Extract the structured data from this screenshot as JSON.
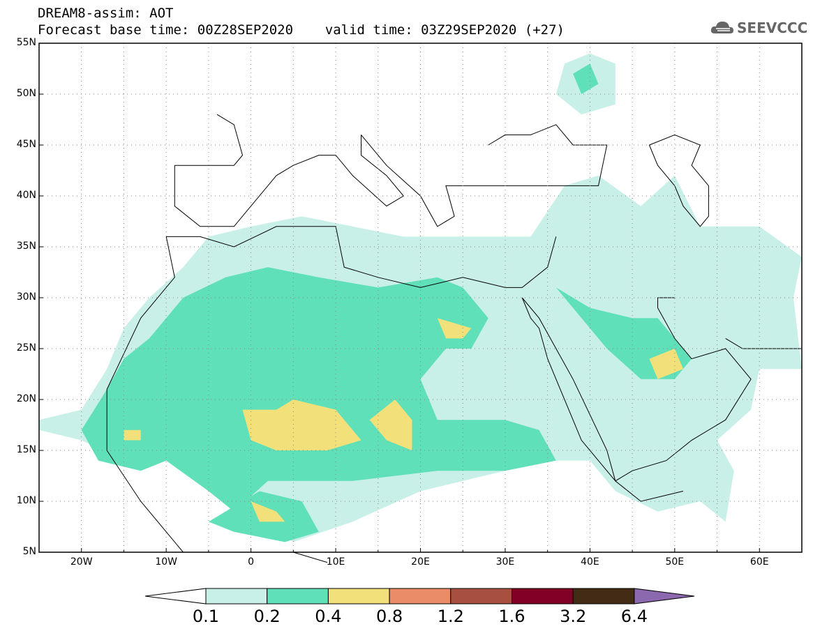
{
  "title": {
    "line1": "DREAM8-assim: AOT",
    "line2": "Forecast base time: 00Z28SEP2020    valid time: 03Z29SEP2020 (+27)"
  },
  "logo": {
    "text": "SEEVCCC",
    "icon": "cloud-icon"
  },
  "map": {
    "lon_range": [
      -25,
      65
    ],
    "lat_range": [
      5,
      55
    ],
    "grid": "dotted",
    "lat_labels": [
      "55N",
      "50N",
      "45N",
      "40N",
      "35N",
      "30N",
      "25N",
      "20N",
      "15N",
      "10N",
      "5N"
    ],
    "lon_labels": [
      "20W",
      "10W",
      "0",
      "10E",
      "20E",
      "30E",
      "40E",
      "50E",
      "60E"
    ]
  },
  "colorbar": {
    "levels": [
      "0.1",
      "0.2",
      "0.4",
      "0.8",
      "1.2",
      "1.6",
      "3.2",
      "6.4"
    ],
    "colors": [
      "#c9f0e8",
      "#5fe0b8",
      "#f2e07a",
      "#eb8c68",
      "#a8503f",
      "#820025",
      "#432c16",
      "#8c68ae"
    ],
    "under_color": "#ffffff"
  },
  "chart_data": {
    "type": "heatmap",
    "title": "DREAM8-assim: AOT",
    "xlabel": "",
    "ylabel": "",
    "xlim": [
      -25,
      65
    ],
    "ylim": [
      5,
      55
    ],
    "series": [
      {
        "name": "",
        "regions": [
          {
            "level": "0.1",
            "polygon": [
              [
                -25,
                17
              ],
              [
                -20,
                16
              ],
              [
                -15,
                14
              ],
              [
                -10,
                15
              ],
              [
                -5,
                11
              ],
              [
                0,
                9
              ],
              [
                5,
                6
              ],
              [
                12,
                8
              ],
              [
                20,
                11
              ],
              [
                25,
                12
              ],
              [
                30,
                13
              ],
              [
                35,
                14
              ],
              [
                40,
                14
              ],
              [
                43,
                11
              ],
              [
                48,
                9
              ],
              [
                53,
                10
              ],
              [
                56,
                8
              ],
              [
                57,
                13
              ],
              [
                55,
                16
              ],
              [
                59,
                19
              ],
              [
                60,
                23
              ],
              [
                65,
                23
              ],
              [
                64,
                30
              ],
              [
                65,
                34
              ],
              [
                60,
                37
              ],
              [
                53,
                37
              ],
              [
                50,
                42
              ],
              [
                46,
                39
              ],
              [
                41,
                42
              ],
              [
                37,
                41
              ],
              [
                33,
                36
              ],
              [
                28,
                36
              ],
              [
                23,
                36
              ],
              [
                18,
                36
              ],
              [
                12,
                37
              ],
              [
                6,
                38
              ],
              [
                0,
                37
              ],
              [
                -5,
                36
              ],
              [
                -8,
                33
              ],
              [
                -12,
                30
              ],
              [
                -15,
                27
              ],
              [
                -17,
                23
              ],
              [
                -20,
                19
              ],
              [
                -25,
                18
              ]
            ]
          },
          {
            "level": "0.1",
            "polygon": [
              [
                37,
                53
              ],
              [
                40,
                54
              ],
              [
                43,
                53
              ],
              [
                43,
                49
              ],
              [
                39,
                48
              ],
              [
                36,
                50
              ]
            ]
          },
          {
            "level": "0.2",
            "polygon": [
              [
                -15,
                24
              ],
              [
                -12,
                26
              ],
              [
                -8,
                30
              ],
              [
                -3,
                32
              ],
              [
                2,
                33
              ],
              [
                8,
                32
              ],
              [
                15,
                31
              ],
              [
                22,
                32
              ],
              [
                25,
                31
              ],
              [
                28,
                28
              ],
              [
                26,
                25
              ],
              [
                23,
                25
              ],
              [
                20,
                22
              ],
              [
                22,
                18
              ],
              [
                30,
                18
              ],
              [
                34,
                17
              ],
              [
                36,
                14
              ],
              [
                30,
                13
              ],
              [
                22,
                13
              ],
              [
                12,
                12
              ],
              [
                2,
                12
              ],
              [
                -2,
                9
              ],
              [
                -5,
                11
              ],
              [
                -10,
                14
              ],
              [
                -13,
                13
              ],
              [
                -18,
                14
              ],
              [
                -20,
                17
              ],
              [
                -17,
                21
              ]
            ]
          },
          {
            "level": "0.2",
            "polygon": [
              [
                36,
                31
              ],
              [
                40,
                29
              ],
              [
                45,
                28
              ],
              [
                48,
                28
              ],
              [
                52,
                24
              ],
              [
                50,
                22
              ],
              [
                46,
                22
              ],
              [
                42,
                25
              ],
              [
                38,
                29
              ]
            ]
          },
          {
            "level": "0.2",
            "polygon": [
              [
                1,
                11
              ],
              [
                6,
                10
              ],
              [
                8,
                7
              ],
              [
                4,
                6
              ],
              [
                -2,
                7
              ],
              [
                -5,
                8
              ]
            ]
          },
          {
            "level": "0.2",
            "polygon": [
              [
                38,
                52
              ],
              [
                40,
                53
              ],
              [
                41,
                51
              ],
              [
                39,
                50
              ]
            ]
          },
          {
            "level": "0.4",
            "polygon": [
              [
                -1,
                19
              ],
              [
                3,
                19
              ],
              [
                5,
                20
              ],
              [
                10,
                19
              ],
              [
                13,
                16
              ],
              [
                9,
                15
              ],
              [
                3,
                15
              ],
              [
                0,
                16
              ]
            ]
          },
          {
            "level": "0.4",
            "polygon": [
              [
                14,
                18
              ],
              [
                17,
                20
              ],
              [
                19,
                18
              ],
              [
                19,
                15
              ],
              [
                16,
                16
              ]
            ]
          },
          {
            "level": "0.4",
            "polygon": [
              [
                22,
                28
              ],
              [
                26,
                27
              ],
              [
                25,
                26
              ],
              [
                23,
                26
              ]
            ]
          },
          {
            "level": "0.4",
            "polygon": [
              [
                47,
                24
              ],
              [
                50,
                25
              ],
              [
                51,
                23
              ],
              [
                48,
                22
              ]
            ]
          },
          {
            "level": "0.4",
            "polygon": [
              [
                0,
                10
              ],
              [
                3,
                9
              ],
              [
                4,
                8
              ],
              [
                1,
                8
              ]
            ]
          },
          {
            "level": "0.4",
            "polygon": [
              [
                -15,
                17
              ],
              [
                -13,
                17
              ],
              [
                -13,
                16
              ],
              [
                -15,
                16
              ]
            ]
          }
        ]
      }
    ]
  }
}
